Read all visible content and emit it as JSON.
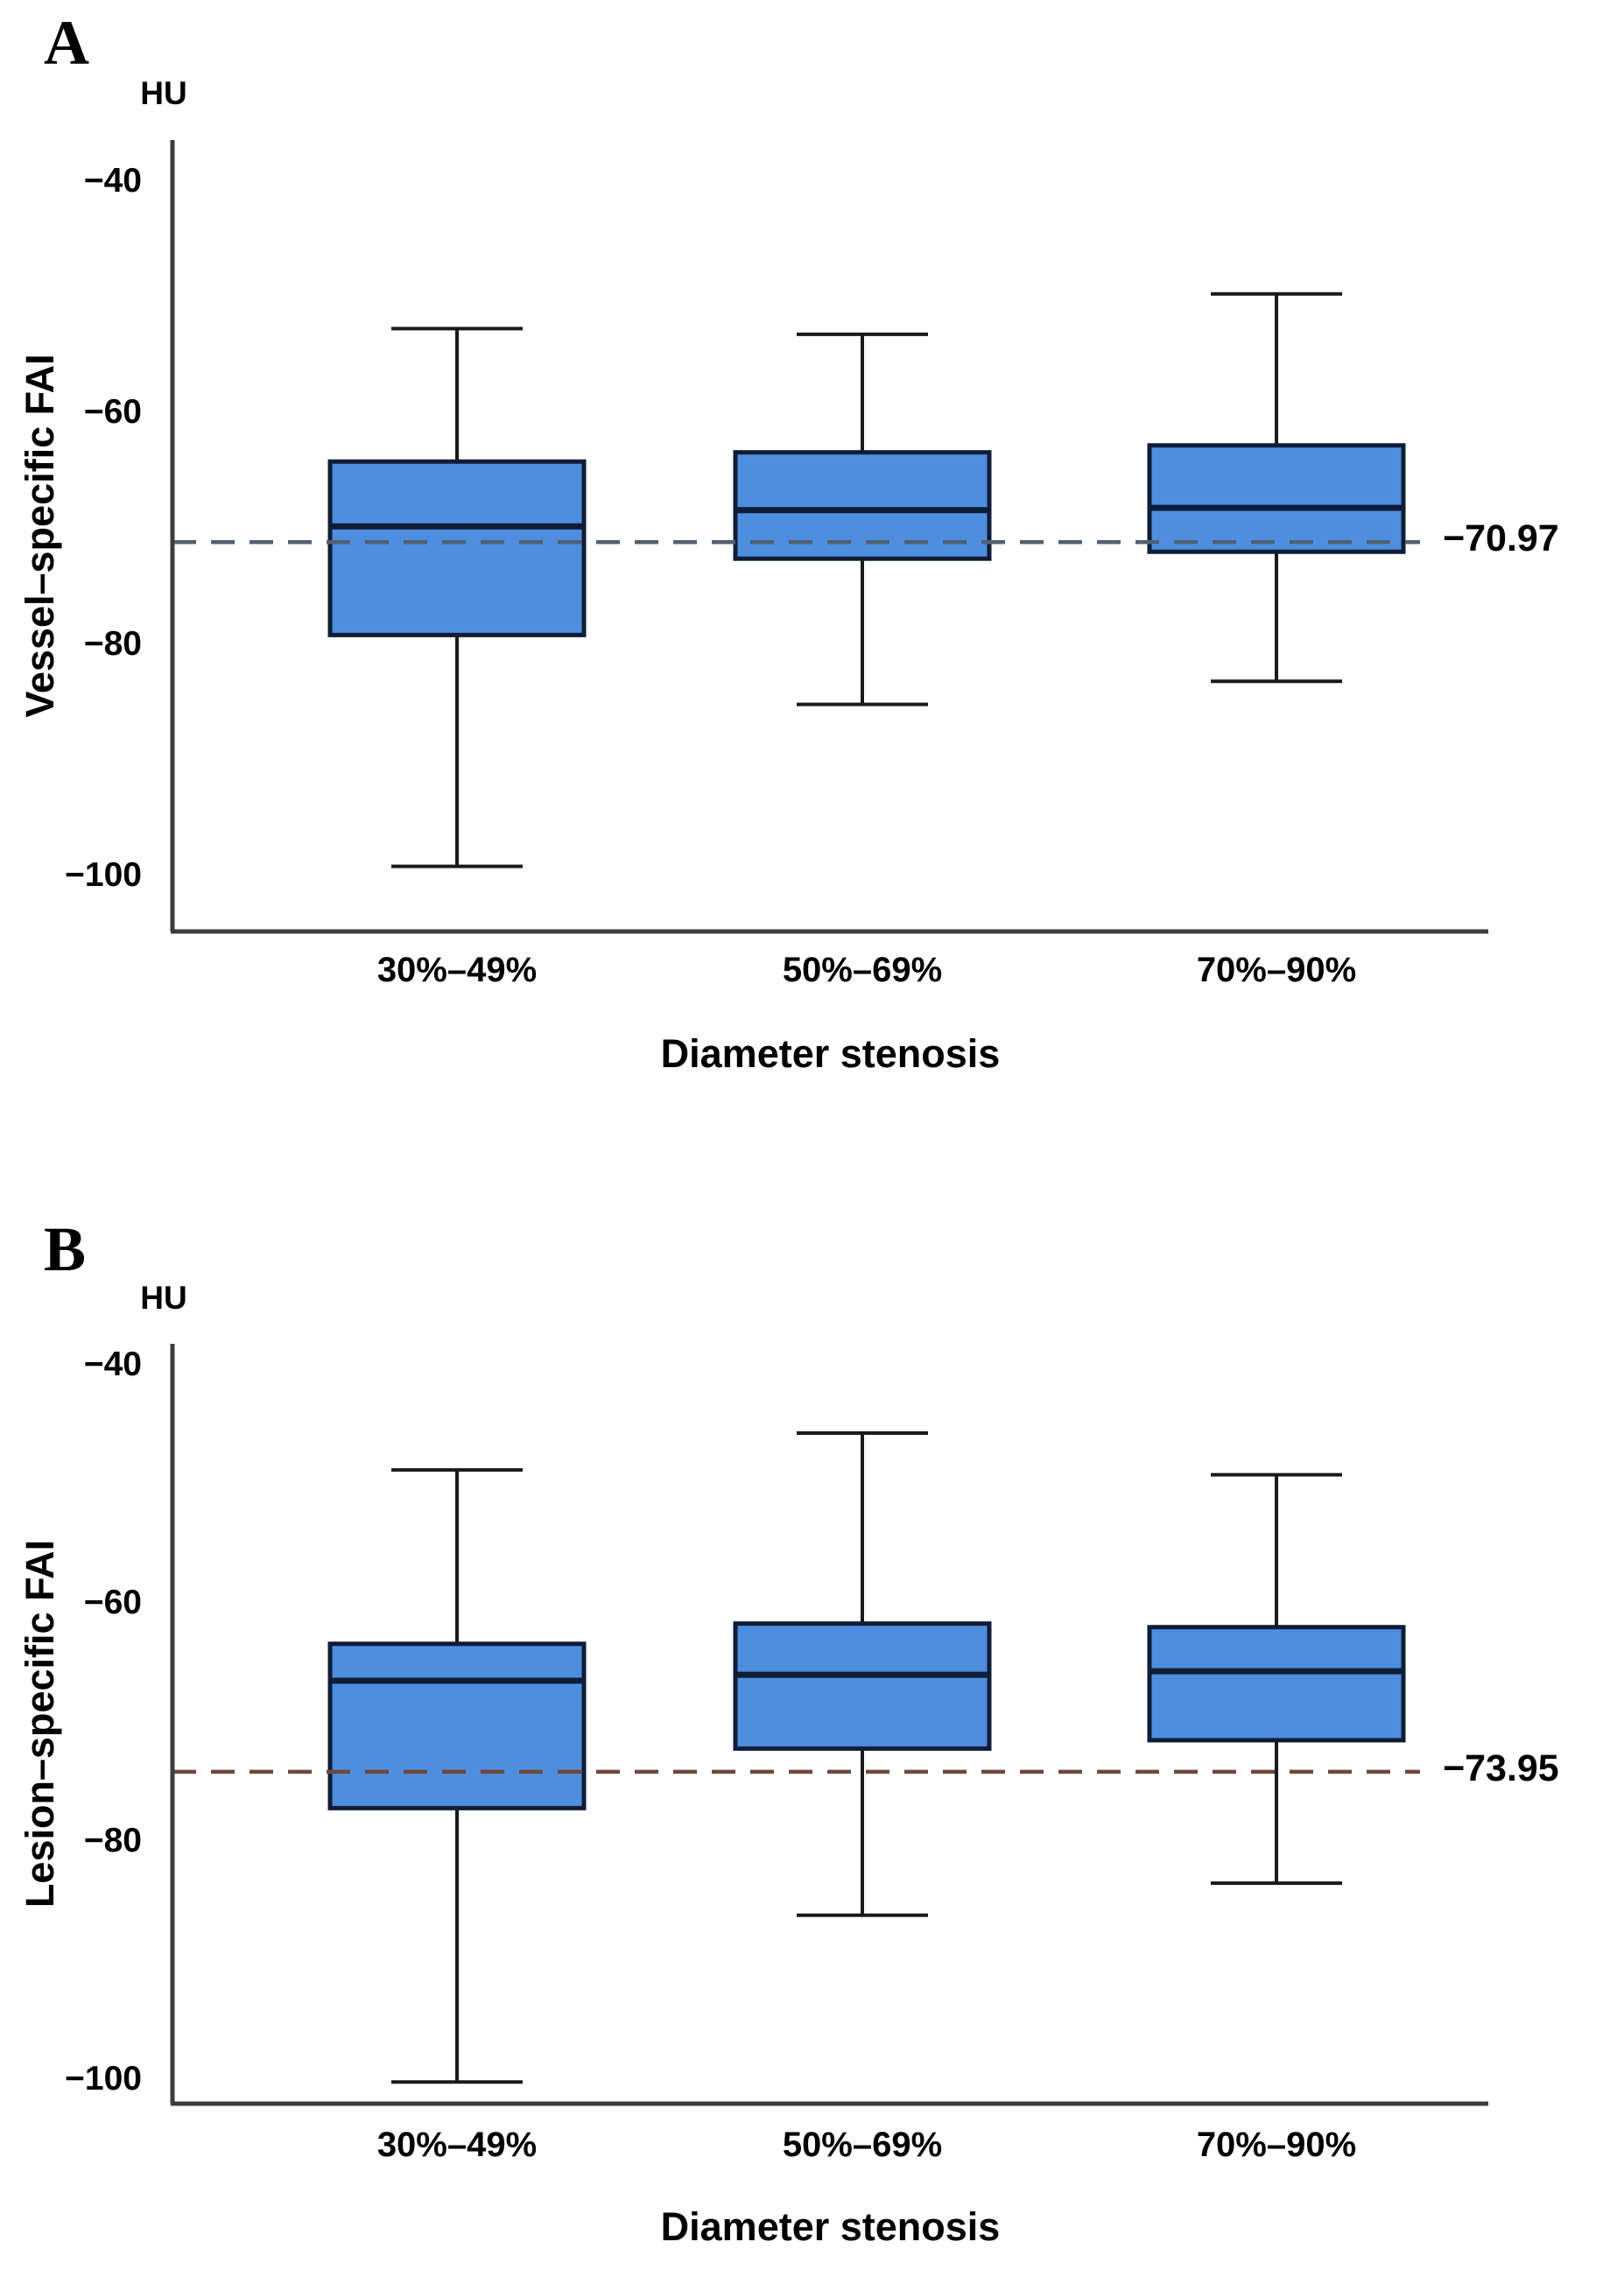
{
  "colors": {
    "box_fill": "#4E8EDE",
    "box_border": "#101D38",
    "median": "#101D38",
    "whisker": "#1A1A1A",
    "axis": "#3C3C3C",
    "mean_dash_panel_a": "#516072",
    "mean_dash_panel_b": "#6F483D",
    "text": "#000000",
    "background": "#FFFFFF"
  },
  "chart_data": [
    {
      "type": "box",
      "panel_label": "A",
      "unit": "HU",
      "ylabel": "Vessel–specific FAI",
      "xlabel": "Diameter stenosis",
      "ylim": [
        -104.5,
        -36
      ],
      "grid": "off",
      "y_ticks": [
        {
          "value": -40,
          "label": "−40"
        },
        {
          "value": -60,
          "label": "−60"
        },
        {
          "value": -80,
          "label": "−80"
        },
        {
          "value": -100,
          "label": "−100"
        }
      ],
      "categories": [
        "30%–49%",
        "50%–69%",
        "70%–90%"
      ],
      "mean_line": {
        "value": -70.97,
        "label": "−70.97"
      },
      "boxes": [
        {
          "category": "30%–49%",
          "whisker_low": -99,
          "q1": -79,
          "median": -69.6,
          "q3": -64,
          "whisker_high": -52.5
        },
        {
          "category": "50%–69%",
          "whisker_low": -85,
          "q1": -72.4,
          "median": -68.2,
          "q3": -63.2,
          "whisker_high": -53
        },
        {
          "category": "70%–90%",
          "whisker_low": -83,
          "q1": -71.8,
          "median": -68,
          "q3": -62.6,
          "whisker_high": -49.5
        }
      ]
    },
    {
      "type": "box",
      "panel_label": "B",
      "unit": "HU",
      "ylabel": "Lesion–specific FAI",
      "xlabel": "Diameter stenosis",
      "ylim": [
        -101.8,
        -38
      ],
      "grid": "off",
      "y_ticks": [
        {
          "value": -40,
          "label": "−40"
        },
        {
          "value": -60,
          "label": "−60"
        },
        {
          "value": -80,
          "label": "−80"
        },
        {
          "value": -100,
          "label": "−100"
        }
      ],
      "categories": [
        "30%–49%",
        "50%–69%",
        "70%–90%"
      ],
      "mean_line": {
        "value": -73.95,
        "label": "−73.95"
      },
      "boxes": [
        {
          "category": "30%–49%",
          "whisker_low": -100,
          "q1": -77,
          "median": -66.3,
          "q3": -63.2,
          "whisker_high": -48.6
        },
        {
          "category": "50%–69%",
          "whisker_low": -86,
          "q1": -72,
          "median": -65.8,
          "q3": -61.5,
          "whisker_high": -45.5
        },
        {
          "category": "70%–90%",
          "whisker_low": -83.3,
          "q1": -71.3,
          "median": -65.5,
          "q3": -61.8,
          "whisker_high": -49
        }
      ]
    }
  ]
}
